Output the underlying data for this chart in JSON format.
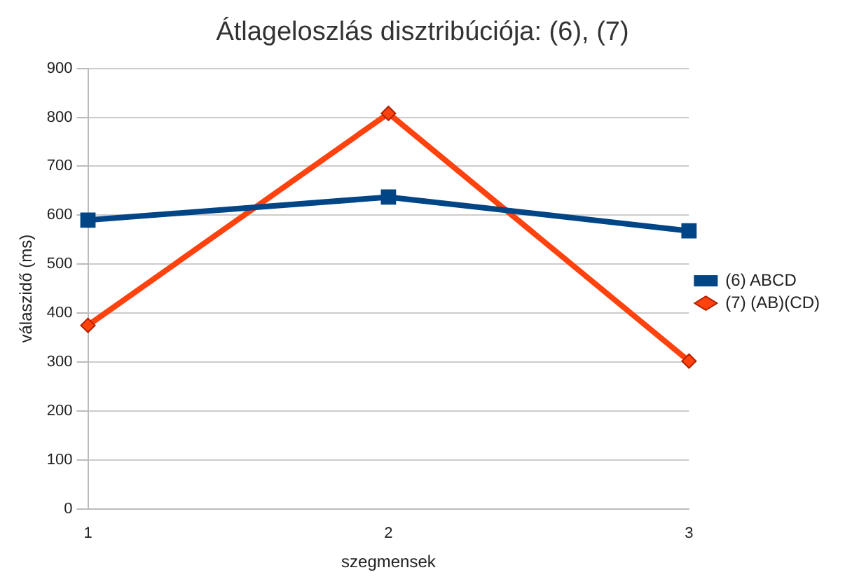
{
  "chart_data": {
    "type": "line",
    "title": "Átlageloszlás disztribúciója: (6), (7)",
    "xlabel": "szegmensek",
    "ylabel": "válaszidő (ms)",
    "categories": [
      "1",
      "2",
      "3"
    ],
    "series": [
      {
        "name": "(6) ABCD",
        "color": "#004586",
        "marker": "square",
        "values": [
          590,
          637,
          568
        ]
      },
      {
        "name": "(7) (AB)(CD)",
        "color": "#ff420e",
        "marker": "diamond",
        "values": [
          375,
          808,
          302
        ]
      }
    ],
    "ylim": [
      0,
      900
    ],
    "yticks": [
      0,
      100,
      200,
      300,
      400,
      500,
      600,
      700,
      800,
      900
    ],
    "grid": "y",
    "legend": "right",
    "line_style": "solid"
  }
}
